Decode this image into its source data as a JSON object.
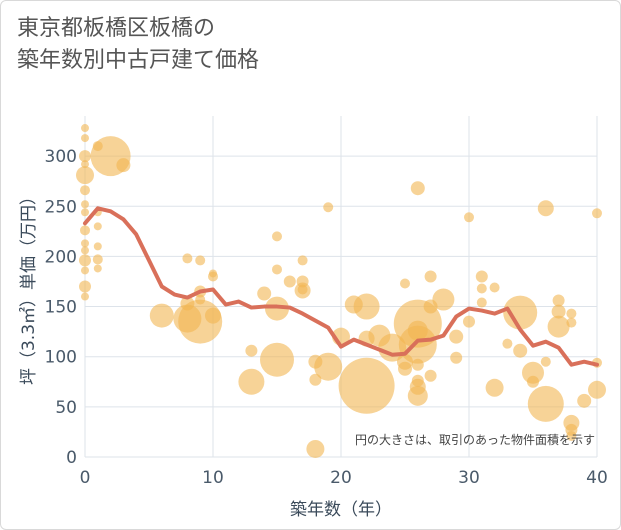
{
  "title": {
    "line1": "東京都板橋区板橋の",
    "line2": "築年数別中古戸建て価格"
  },
  "chart_data": {
    "type": "scatter",
    "xlabel": "築年数（年）",
    "ylabel": "坪（3.3㎡）単価（万円）",
    "xlim": [
      0,
      40
    ],
    "ylim": [
      0,
      340
    ],
    "xticks": [
      0,
      10,
      20,
      30,
      40
    ],
    "yticks": [
      0,
      50,
      100,
      150,
      200,
      250,
      300
    ],
    "grid": true,
    "annotation": "円の大きさは、取引のあった物件面積を示す",
    "colors": {
      "bubble": "#f2b552",
      "line": "#d9705a",
      "grid": "#dde3ea"
    },
    "bubbles": [
      {
        "x": 0,
        "y": 328,
        "s": 4
      },
      {
        "x": 0,
        "y": 318,
        "s": 4
      },
      {
        "x": 0,
        "y": 300,
        "s": 6
      },
      {
        "x": 0,
        "y": 292,
        "s": 4
      },
      {
        "x": 0,
        "y": 281,
        "s": 9
      },
      {
        "x": 0,
        "y": 266,
        "s": 5
      },
      {
        "x": 0,
        "y": 252,
        "s": 4
      },
      {
        "x": 0,
        "y": 244,
        "s": 4
      },
      {
        "x": 0,
        "y": 226,
        "s": 5
      },
      {
        "x": 0,
        "y": 213,
        "s": 4
      },
      {
        "x": 0,
        "y": 206,
        "s": 4
      },
      {
        "x": 0,
        "y": 196,
        "s": 6
      },
      {
        "x": 0,
        "y": 186,
        "s": 4
      },
      {
        "x": 0,
        "y": 170,
        "s": 6
      },
      {
        "x": 0,
        "y": 160,
        "s": 4
      },
      {
        "x": 1,
        "y": 310,
        "s": 5
      },
      {
        "x": 1,
        "y": 244,
        "s": 4
      },
      {
        "x": 1,
        "y": 230,
        "s": 4
      },
      {
        "x": 1,
        "y": 210,
        "s": 4
      },
      {
        "x": 1,
        "y": 197,
        "s": 5
      },
      {
        "x": 1,
        "y": 188,
        "s": 4
      },
      {
        "x": 2,
        "y": 300,
        "s": 20
      },
      {
        "x": 3,
        "y": 291,
        "s": 7
      },
      {
        "x": 6,
        "y": 141,
        "s": 12
      },
      {
        "x": 8,
        "y": 198,
        "s": 5
      },
      {
        "x": 8,
        "y": 153,
        "s": 7
      },
      {
        "x": 8,
        "y": 138,
        "s": 14
      },
      {
        "x": 9,
        "y": 165,
        "s": 6
      },
      {
        "x": 9,
        "y": 196,
        "s": 5
      },
      {
        "x": 9,
        "y": 157,
        "s": 5
      },
      {
        "x": 9,
        "y": 135,
        "s": 22
      },
      {
        "x": 10,
        "y": 141,
        "s": 8
      },
      {
        "x": 10,
        "y": 183,
        "s": 4
      },
      {
        "x": 10,
        "y": 180,
        "s": 5
      },
      {
        "x": 13,
        "y": 106,
        "s": 6
      },
      {
        "x": 13,
        "y": 75,
        "s": 13
      },
      {
        "x": 14,
        "y": 163,
        "s": 7
      },
      {
        "x": 15,
        "y": 220,
        "s": 5
      },
      {
        "x": 15,
        "y": 187,
        "s": 5
      },
      {
        "x": 15,
        "y": 148,
        "s": 12
      },
      {
        "x": 15,
        "y": 97,
        "s": 17
      },
      {
        "x": 16,
        "y": 175,
        "s": 6
      },
      {
        "x": 17,
        "y": 196,
        "s": 5
      },
      {
        "x": 17,
        "y": 175,
        "s": 6
      },
      {
        "x": 17,
        "y": 166,
        "s": 8
      },
      {
        "x": 17,
        "y": 167,
        "s": 5
      },
      {
        "x": 18,
        "y": 95,
        "s": 7
      },
      {
        "x": 18,
        "y": 77,
        "s": 6
      },
      {
        "x": 18,
        "y": 8,
        "s": 9
      },
      {
        "x": 19,
        "y": 249,
        "s": 5
      },
      {
        "x": 19,
        "y": 90,
        "s": 14
      },
      {
        "x": 20,
        "y": 120,
        "s": 9
      },
      {
        "x": 21,
        "y": 152,
        "s": 9
      },
      {
        "x": 22,
        "y": 71,
        "s": 28
      },
      {
        "x": 22,
        "y": 150,
        "s": 13
      },
      {
        "x": 22,
        "y": 118,
        "s": 8
      },
      {
        "x": 23,
        "y": 121,
        "s": 11
      },
      {
        "x": 24,
        "y": 109,
        "s": 14
      },
      {
        "x": 25,
        "y": 95,
        "s": 8
      },
      {
        "x": 25,
        "y": 88,
        "s": 7
      },
      {
        "x": 25,
        "y": 173,
        "s": 5
      },
      {
        "x": 26,
        "y": 268,
        "s": 7
      },
      {
        "x": 26,
        "y": 133,
        "s": 24
      },
      {
        "x": 26,
        "y": 126,
        "s": 10
      },
      {
        "x": 26,
        "y": 112,
        "s": 19
      },
      {
        "x": 26,
        "y": 92,
        "s": 6
      },
      {
        "x": 26,
        "y": 76,
        "s": 6
      },
      {
        "x": 26,
        "y": 70,
        "s": 8
      },
      {
        "x": 26,
        "y": 61,
        "s": 10
      },
      {
        "x": 27,
        "y": 180,
        "s": 6
      },
      {
        "x": 27,
        "y": 150,
        "s": 7
      },
      {
        "x": 27,
        "y": 81,
        "s": 6
      },
      {
        "x": 28,
        "y": 157,
        "s": 11
      },
      {
        "x": 29,
        "y": 99,
        "s": 6
      },
      {
        "x": 29,
        "y": 120,
        "s": 7
      },
      {
        "x": 30,
        "y": 239,
        "s": 5
      },
      {
        "x": 30,
        "y": 135,
        "s": 6
      },
      {
        "x": 31,
        "y": 180,
        "s": 6
      },
      {
        "x": 31,
        "y": 168,
        "s": 5
      },
      {
        "x": 31,
        "y": 154,
        "s": 5
      },
      {
        "x": 32,
        "y": 169,
        "s": 5
      },
      {
        "x": 32,
        "y": 69,
        "s": 9
      },
      {
        "x": 33,
        "y": 113,
        "s": 5
      },
      {
        "x": 34,
        "y": 144,
        "s": 17
      },
      {
        "x": 34,
        "y": 106,
        "s": 7
      },
      {
        "x": 35,
        "y": 75,
        "s": 6
      },
      {
        "x": 35,
        "y": 84,
        "s": 11
      },
      {
        "x": 36,
        "y": 248,
        "s": 8
      },
      {
        "x": 36,
        "y": 53,
        "s": 18
      },
      {
        "x": 36,
        "y": 95,
        "s": 5
      },
      {
        "x": 37,
        "y": 156,
        "s": 6
      },
      {
        "x": 37,
        "y": 130,
        "s": 11
      },
      {
        "x": 37,
        "y": 145,
        "s": 7
      },
      {
        "x": 38,
        "y": 143,
        "s": 5
      },
      {
        "x": 38,
        "y": 134,
        "s": 5
      },
      {
        "x": 38,
        "y": 34,
        "s": 8
      },
      {
        "x": 38,
        "y": 27,
        "s": 6
      },
      {
        "x": 38,
        "y": 21,
        "s": 5
      },
      {
        "x": 39,
        "y": 56,
        "s": 7
      },
      {
        "x": 40,
        "y": 243,
        "s": 5
      },
      {
        "x": 40,
        "y": 94,
        "s": 5
      },
      {
        "x": 40,
        "y": 67,
        "s": 9
      }
    ],
    "line": {
      "x": [
        0,
        1,
        2,
        3,
        4,
        5,
        6,
        7,
        8,
        9,
        10,
        11,
        12,
        13,
        14,
        15,
        16,
        17,
        18,
        19,
        20,
        21,
        22,
        23,
        24,
        25,
        26,
        27,
        28,
        29,
        30,
        31,
        32,
        33,
        34,
        35,
        36,
        37,
        38,
        39,
        40
      ],
      "y": [
        233,
        248,
        245,
        237,
        222,
        196,
        170,
        162,
        159,
        165,
        167,
        152,
        155,
        149,
        150,
        150,
        149,
        143,
        136,
        129,
        110,
        117,
        112,
        107,
        102,
        103,
        116,
        117,
        121,
        140,
        148,
        146,
        143,
        148,
        127,
        111,
        115,
        109,
        92,
        95,
        92
      ]
    }
  }
}
